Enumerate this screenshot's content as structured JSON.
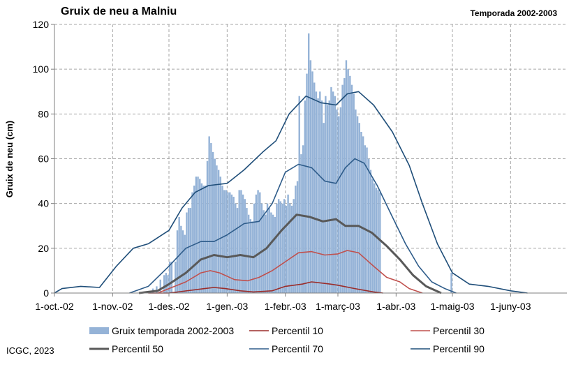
{
  "header": {
    "title": "Gruix de neu a Malniu",
    "season": "Temporada 2002-2003"
  },
  "footer": {
    "credit": "ICGC, 2023"
  },
  "chart_data": {
    "type": "bar",
    "title": "Gruix de neu a Malniu",
    "subtitle": "Temporada 2002-2003",
    "ylabel": "Gruix de neu (cm)",
    "xlabel": "",
    "ylim": [
      0,
      120
    ],
    "yticks": [
      0,
      20,
      40,
      60,
      80,
      100,
      120
    ],
    "x_start": "2002-10-01",
    "x_end": "2003-06-30",
    "xticks": [
      {
        "label": "1-oct.-02",
        "date": "2002-10-01"
      },
      {
        "label": "1-nov.-02",
        "date": "2002-11-01"
      },
      {
        "label": "1-des.-02",
        "date": "2002-12-01"
      },
      {
        "label": "1-gen.-03",
        "date": "2003-01-01"
      },
      {
        "label": "1-febr.-03",
        "date": "2003-02-01"
      },
      {
        "label": "1-març-03",
        "date": "2003-03-01"
      },
      {
        "label": "1-abr.-03",
        "date": "2003-04-01"
      },
      {
        "label": "1-maig-03",
        "date": "2003-05-01"
      },
      {
        "label": "1-juny-03",
        "date": "2003-06-01"
      }
    ],
    "grid": true,
    "legend_position": "bottom",
    "series": [
      {
        "name": "Gruix temporada 2002-2003",
        "type": "bar",
        "color": "#95b3d7",
        "points": [
          [
            "2002-11-20",
            1
          ],
          [
            "2002-11-22",
            2
          ],
          [
            "2002-11-24",
            3
          ],
          [
            "2002-11-26",
            6
          ],
          [
            "2002-11-28",
            8
          ],
          [
            "2002-11-29",
            9
          ],
          [
            "2002-11-30",
            8
          ],
          [
            "2002-12-01",
            14
          ],
          [
            "2002-12-02",
            14
          ],
          [
            "2002-12-04",
            14
          ],
          [
            "2002-12-05",
            28
          ],
          [
            "2002-12-06",
            34
          ],
          [
            "2002-12-07",
            30
          ],
          [
            "2002-12-08",
            28
          ],
          [
            "2002-12-09",
            26
          ],
          [
            "2002-12-10",
            36
          ],
          [
            "2002-12-11",
            38
          ],
          [
            "2002-12-12",
            38
          ],
          [
            "2002-12-13",
            45
          ],
          [
            "2002-12-14",
            48
          ],
          [
            "2002-12-15",
            52
          ],
          [
            "2002-12-16",
            52
          ],
          [
            "2002-12-17",
            51
          ],
          [
            "2002-12-18",
            49
          ],
          [
            "2002-12-19",
            48
          ],
          [
            "2002-12-20",
            48
          ],
          [
            "2002-12-21",
            59
          ],
          [
            "2002-12-22",
            70
          ],
          [
            "2002-12-23",
            67
          ],
          [
            "2002-12-24",
            63
          ],
          [
            "2002-12-25",
            60
          ],
          [
            "2002-12-26",
            57
          ],
          [
            "2002-12-27",
            55
          ],
          [
            "2002-12-28",
            52
          ],
          [
            "2002-12-29",
            48
          ],
          [
            "2002-12-30",
            46
          ],
          [
            "2002-12-31",
            46
          ],
          [
            "2003-01-01",
            45
          ],
          [
            "2003-01-02",
            45
          ],
          [
            "2003-01-03",
            44
          ],
          [
            "2003-01-04",
            43
          ],
          [
            "2003-01-05",
            40
          ],
          [
            "2003-01-06",
            38
          ],
          [
            "2003-01-07",
            46
          ],
          [
            "2003-01-08",
            46
          ],
          [
            "2003-01-09",
            44
          ],
          [
            "2003-01-10",
            42
          ],
          [
            "2003-01-11",
            38
          ],
          [
            "2003-01-12",
            35
          ],
          [
            "2003-01-13",
            33
          ],
          [
            "2003-01-14",
            32
          ],
          [
            "2003-01-15",
            40
          ],
          [
            "2003-01-16",
            44
          ],
          [
            "2003-01-17",
            46
          ],
          [
            "2003-01-18",
            45
          ],
          [
            "2003-01-19",
            40
          ],
          [
            "2003-01-20",
            37
          ],
          [
            "2003-01-21",
            35
          ],
          [
            "2003-01-22",
            40
          ],
          [
            "2003-01-23",
            38
          ],
          [
            "2003-01-24",
            36
          ],
          [
            "2003-01-25",
            35
          ],
          [
            "2003-01-26",
            34
          ],
          [
            "2003-01-27",
            40
          ],
          [
            "2003-01-28",
            42
          ],
          [
            "2003-01-29",
            41
          ],
          [
            "2003-01-30",
            40
          ],
          [
            "2003-01-31",
            42
          ],
          [
            "2003-02-01",
            39
          ],
          [
            "2003-02-02",
            44
          ],
          [
            "2003-02-03",
            40
          ],
          [
            "2003-02-04",
            39
          ],
          [
            "2003-02-05",
            42
          ],
          [
            "2003-02-06",
            48
          ],
          [
            "2003-02-07",
            50
          ],
          [
            "2003-02-08",
            88
          ],
          [
            "2003-02-09",
            62
          ],
          [
            "2003-02-10",
            66
          ],
          [
            "2003-02-11",
            86
          ],
          [
            "2003-02-12",
            98
          ],
          [
            "2003-02-13",
            116
          ],
          [
            "2003-02-14",
            104
          ],
          [
            "2003-02-15",
            99
          ],
          [
            "2003-02-16",
            94
          ],
          [
            "2003-02-17",
            90
          ],
          [
            "2003-02-18",
            87
          ],
          [
            "2003-02-19",
            90
          ],
          [
            "2003-02-20",
            86
          ],
          [
            "2003-02-21",
            76
          ],
          [
            "2003-02-22",
            88
          ],
          [
            "2003-02-23",
            84
          ],
          [
            "2003-02-24",
            86
          ],
          [
            "2003-02-25",
            92
          ],
          [
            "2003-02-26",
            90
          ],
          [
            "2003-02-27",
            88
          ],
          [
            "2003-02-28",
            82
          ],
          [
            "2003-03-01",
            79
          ],
          [
            "2003-03-02",
            83
          ],
          [
            "2003-03-03",
            93
          ],
          [
            "2003-03-04",
            96
          ],
          [
            "2003-03-05",
            104
          ],
          [
            "2003-03-06",
            100
          ],
          [
            "2003-03-07",
            97
          ],
          [
            "2003-03-08",
            93
          ],
          [
            "2003-03-09",
            89
          ],
          [
            "2003-03-10",
            82
          ],
          [
            "2003-03-11",
            79
          ],
          [
            "2003-03-12",
            76
          ],
          [
            "2003-03-13",
            72
          ],
          [
            "2003-03-14",
            70
          ],
          [
            "2003-03-15",
            66
          ],
          [
            "2003-03-16",
            65
          ],
          [
            "2003-03-17",
            60
          ],
          [
            "2003-03-18",
            55
          ],
          [
            "2003-03-19",
            51
          ],
          [
            "2003-03-20",
            49
          ],
          [
            "2003-03-21",
            47
          ],
          [
            "2003-03-22",
            46
          ],
          [
            "2003-03-23",
            45
          ],
          [
            "2003-04-30",
            9
          ]
        ]
      },
      {
        "name": "Percentil 10",
        "type": "line",
        "color": "#9b2d2a",
        "points": [
          [
            "2002-11-20",
            0
          ],
          [
            "2002-12-01",
            0
          ],
          [
            "2002-12-20",
            2
          ],
          [
            "2002-12-25",
            2.5
          ],
          [
            "2002-12-31",
            2
          ],
          [
            "2003-01-08",
            1
          ],
          [
            "2003-01-15",
            0.5
          ],
          [
            "2003-01-25",
            1
          ],
          [
            "2003-02-01",
            3
          ],
          [
            "2003-02-10",
            4
          ],
          [
            "2003-02-15",
            5
          ],
          [
            "2003-02-20",
            4.5
          ],
          [
            "2003-02-25",
            4
          ],
          [
            "2003-03-01",
            3.5
          ],
          [
            "2003-03-10",
            2
          ],
          [
            "2003-03-20",
            0.5
          ],
          [
            "2003-03-25",
            0
          ]
        ]
      },
      {
        "name": "Percentil 30",
        "type": "line",
        "color": "#c0504d",
        "points": [
          [
            "2002-11-25",
            0
          ],
          [
            "2002-12-01",
            2
          ],
          [
            "2002-12-10",
            5
          ],
          [
            "2002-12-18",
            9
          ],
          [
            "2002-12-23",
            10
          ],
          [
            "2002-12-28",
            9
          ],
          [
            "2003-01-05",
            6
          ],
          [
            "2003-01-12",
            5.5
          ],
          [
            "2003-01-18",
            7
          ],
          [
            "2003-01-25",
            10
          ],
          [
            "2003-02-01",
            14
          ],
          [
            "2003-02-08",
            18
          ],
          [
            "2003-02-15",
            18.5
          ],
          [
            "2003-02-22",
            17
          ],
          [
            "2003-03-01",
            17.5
          ],
          [
            "2003-03-06",
            19
          ],
          [
            "2003-03-12",
            18
          ],
          [
            "2003-03-20",
            12
          ],
          [
            "2003-03-27",
            7
          ],
          [
            "2003-04-03",
            5
          ],
          [
            "2003-04-08",
            2
          ],
          [
            "2003-04-15",
            0
          ]
        ]
      },
      {
        "name": "Percentil 50",
        "type": "line",
        "color": "#595959",
        "points": [
          [
            "2002-11-15",
            0
          ],
          [
            "2002-11-25",
            1
          ],
          [
            "2002-12-01",
            4
          ],
          [
            "2002-12-10",
            9
          ],
          [
            "2002-12-18",
            15
          ],
          [
            "2002-12-25",
            17
          ],
          [
            "2003-01-01",
            16
          ],
          [
            "2003-01-08",
            17
          ],
          [
            "2003-01-15",
            16
          ],
          [
            "2003-01-22",
            20
          ],
          [
            "2003-01-30",
            28
          ],
          [
            "2003-02-07",
            35
          ],
          [
            "2003-02-14",
            34
          ],
          [
            "2003-02-21",
            32
          ],
          [
            "2003-02-28",
            33
          ],
          [
            "2003-03-05",
            30
          ],
          [
            "2003-03-12",
            30
          ],
          [
            "2003-03-19",
            27
          ],
          [
            "2003-03-27",
            21
          ],
          [
            "2003-04-03",
            15
          ],
          [
            "2003-04-10",
            8
          ],
          [
            "2003-04-17",
            3
          ],
          [
            "2003-04-25",
            0
          ]
        ]
      },
      {
        "name": "Percentil 70",
        "type": "line",
        "color": "#2e5c8a",
        "points": [
          [
            "2002-11-10",
            0
          ],
          [
            "2002-11-20",
            3
          ],
          [
            "2002-12-01",
            12
          ],
          [
            "2002-12-10",
            20
          ],
          [
            "2002-12-18",
            23
          ],
          [
            "2002-12-25",
            23
          ],
          [
            "2003-01-01",
            26
          ],
          [
            "2003-01-10",
            31
          ],
          [
            "2003-01-18",
            32
          ],
          [
            "2003-01-25",
            40
          ],
          [
            "2003-02-01",
            54
          ],
          [
            "2003-02-08",
            57.5
          ],
          [
            "2003-02-15",
            56
          ],
          [
            "2003-02-22",
            50
          ],
          [
            "2003-02-28",
            49
          ],
          [
            "2003-03-05",
            56
          ],
          [
            "2003-03-10",
            60
          ],
          [
            "2003-03-15",
            58
          ],
          [
            "2003-03-22",
            48
          ],
          [
            "2003-03-30",
            34
          ],
          [
            "2003-04-06",
            22
          ],
          [
            "2003-04-13",
            12
          ],
          [
            "2003-04-20",
            5
          ],
          [
            "2003-04-27",
            2
          ],
          [
            "2003-05-03",
            0
          ]
        ]
      },
      {
        "name": "Percentil 90",
        "type": "line",
        "color": "#1f4e79",
        "points": [
          [
            "2002-10-01",
            0
          ],
          [
            "2002-10-05",
            2
          ],
          [
            "2002-10-15",
            3
          ],
          [
            "2002-10-25",
            2.5
          ],
          [
            "2002-11-03",
            12
          ],
          [
            "2002-11-12",
            20
          ],
          [
            "2002-11-20",
            22
          ],
          [
            "2002-12-01",
            28
          ],
          [
            "2002-12-08",
            38
          ],
          [
            "2002-12-15",
            45
          ],
          [
            "2002-12-22",
            48
          ],
          [
            "2003-01-01",
            49
          ],
          [
            "2003-01-10",
            55
          ],
          [
            "2003-01-20",
            63
          ],
          [
            "2003-01-27",
            68
          ],
          [
            "2003-02-03",
            80
          ],
          [
            "2003-02-12",
            88
          ],
          [
            "2003-02-20",
            85
          ],
          [
            "2003-02-28",
            84
          ],
          [
            "2003-03-06",
            89
          ],
          [
            "2003-03-12",
            90
          ],
          [
            "2003-03-20",
            84
          ],
          [
            "2003-03-30",
            72
          ],
          [
            "2003-04-08",
            57
          ],
          [
            "2003-04-15",
            40
          ],
          [
            "2003-04-23",
            22
          ],
          [
            "2003-05-01",
            9
          ],
          [
            "2003-05-10",
            4
          ],
          [
            "2003-05-20",
            3
          ],
          [
            "2003-06-01",
            1
          ],
          [
            "2003-06-10",
            0
          ]
        ]
      }
    ]
  }
}
